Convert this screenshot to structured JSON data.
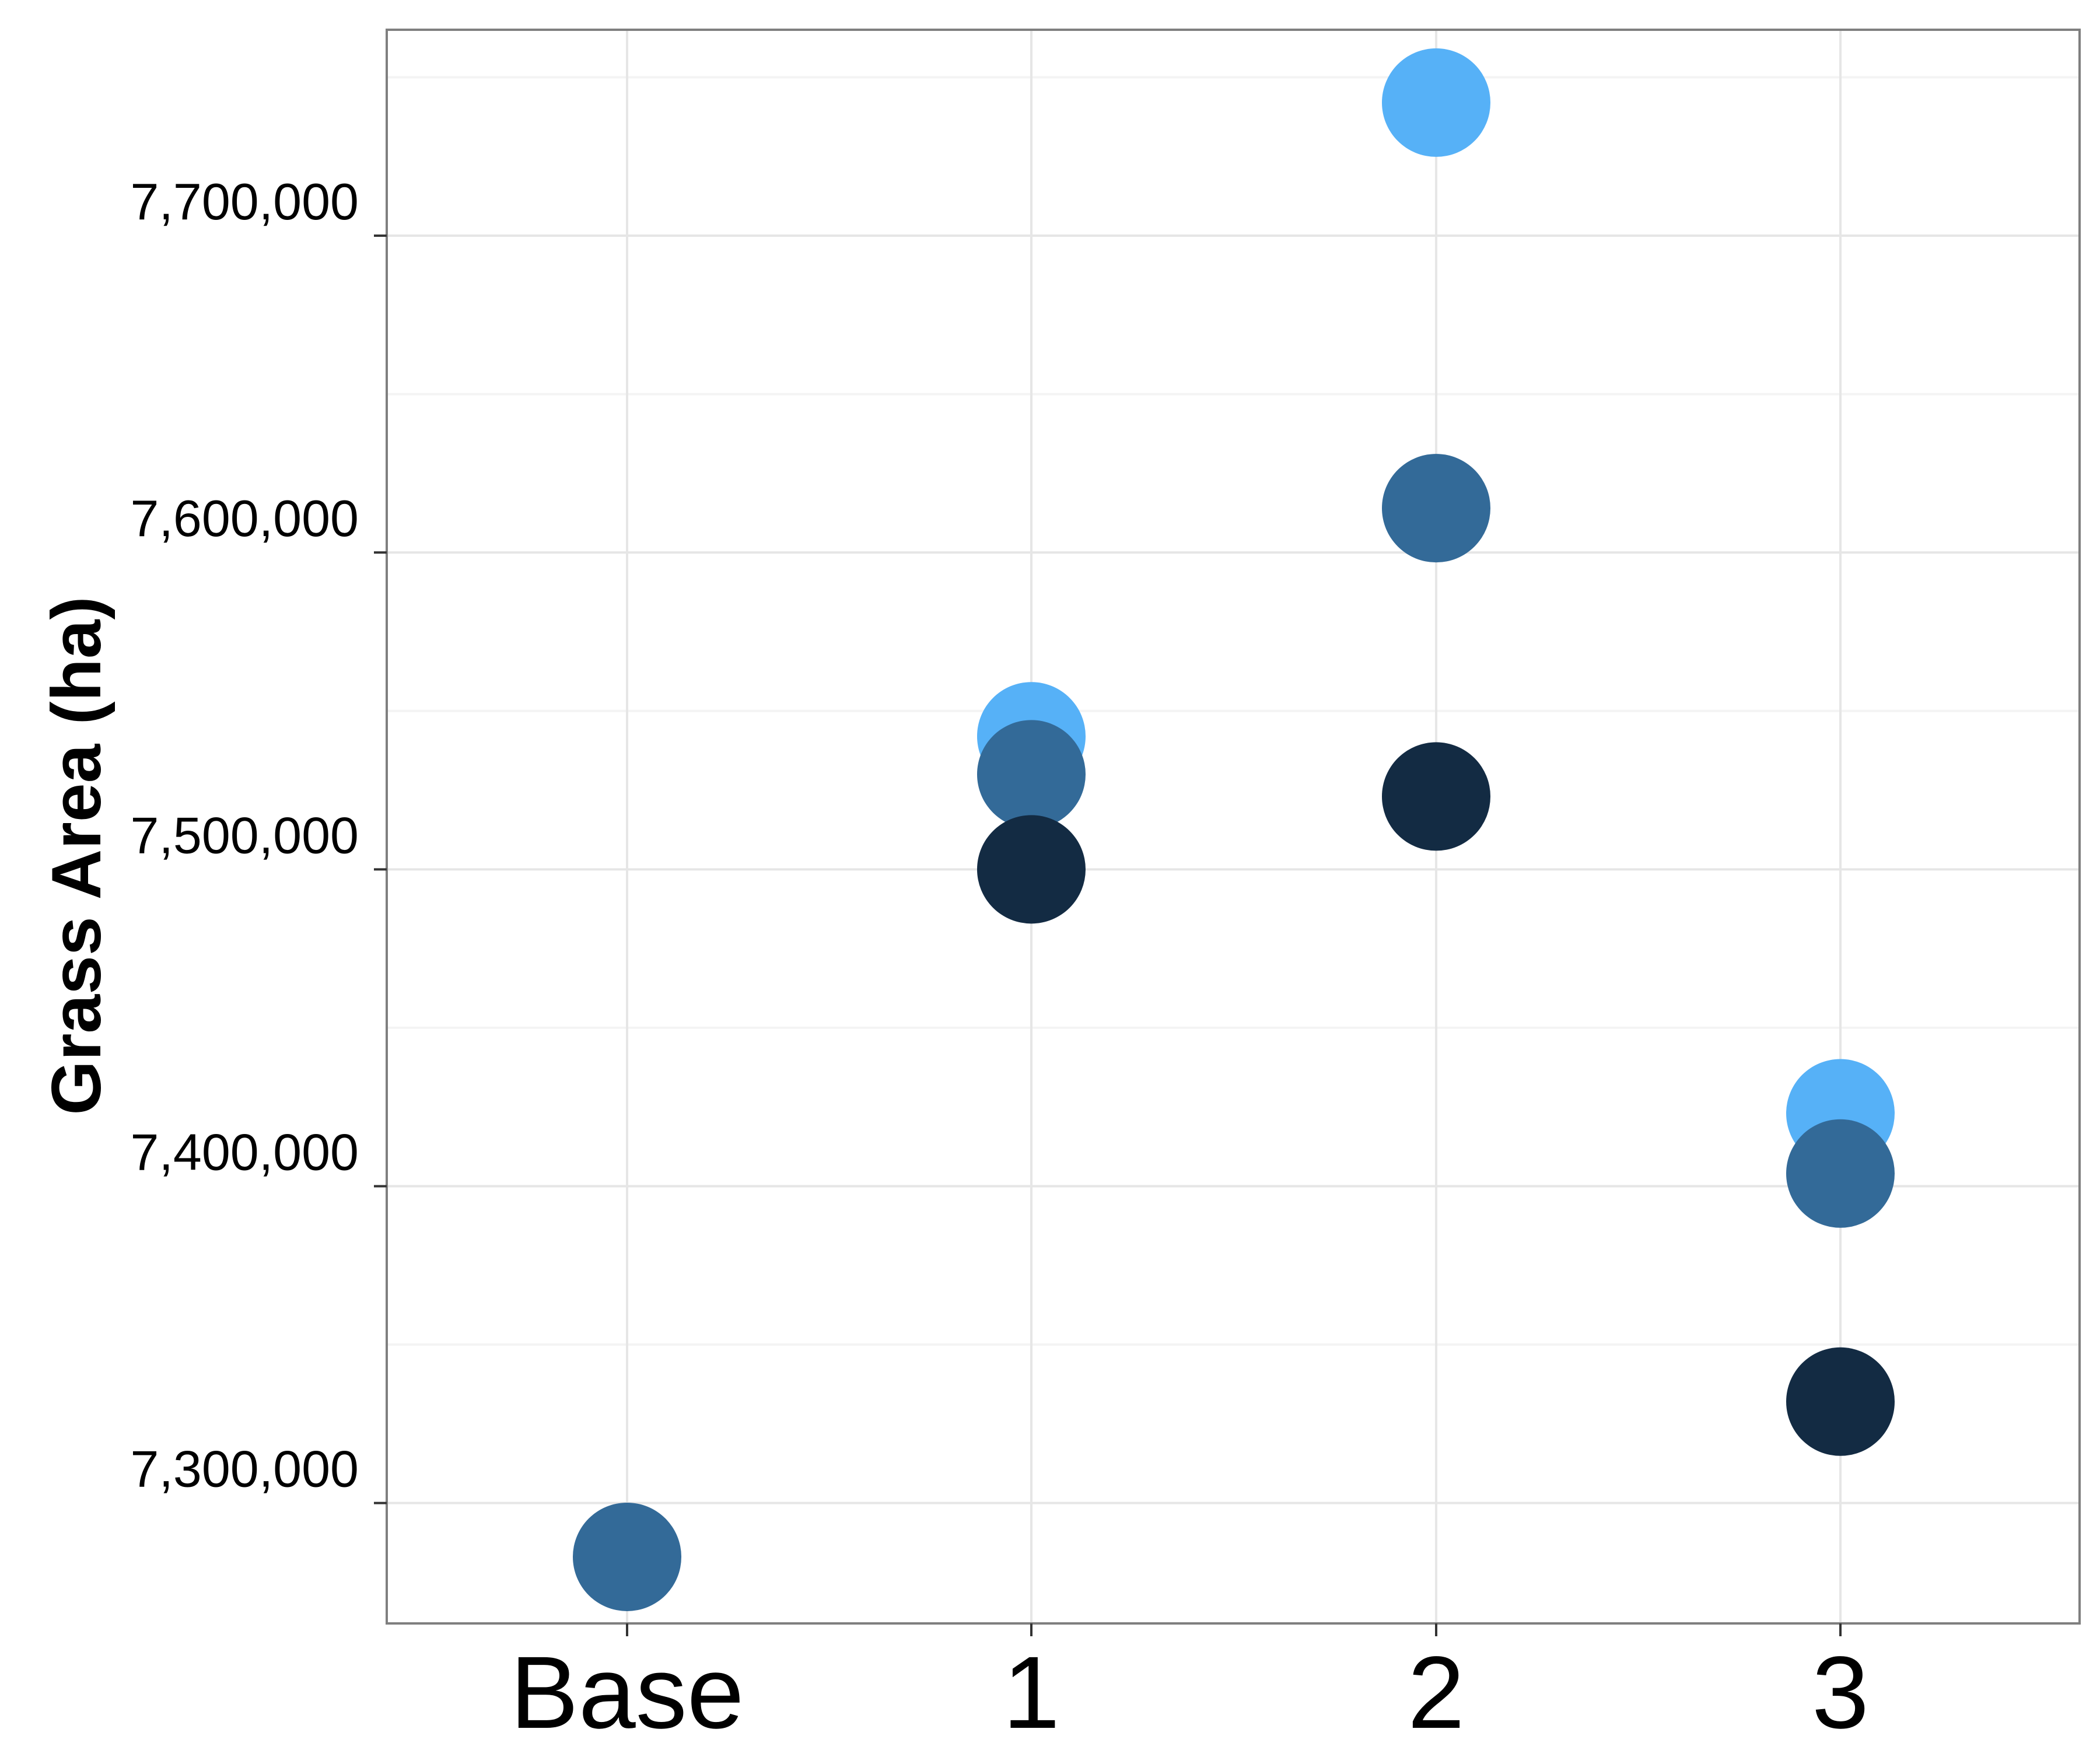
{
  "chart_data": {
    "type": "scatter",
    "title": "",
    "xlabel": "",
    "ylabel": "Grass Area (ha)",
    "categories": [
      "Base",
      "1",
      "2",
      "3"
    ],
    "ylim": [
      7262000,
      7765000
    ],
    "y_ticks": [
      7300000,
      7400000,
      7500000,
      7600000,
      7700000
    ],
    "y_tick_labels": [
      "7,300,000",
      "7,400,000",
      "7,500,000",
      "7,600,000",
      "7,700,000"
    ],
    "grid": true,
    "legend": "none",
    "series": [
      {
        "color": "#56B1F7",
        "points": [
          {
            "x": "1",
            "y": 7542000
          },
          {
            "x": "2",
            "y": 7742000
          },
          {
            "x": "3",
            "y": 7423000
          }
        ]
      },
      {
        "color": "#336A98",
        "points": [
          {
            "x": "Base",
            "y": 7283000
          },
          {
            "x": "1",
            "y": 7530000
          },
          {
            "x": "2",
            "y": 7614000
          },
          {
            "x": "3",
            "y": 7404000
          }
        ]
      },
      {
        "color": "#132B43",
        "points": [
          {
            "x": "1",
            "y": 7500000
          },
          {
            "x": "2",
            "y": 7523000
          },
          {
            "x": "3",
            "y": 7332000
          }
        ]
      }
    ]
  }
}
